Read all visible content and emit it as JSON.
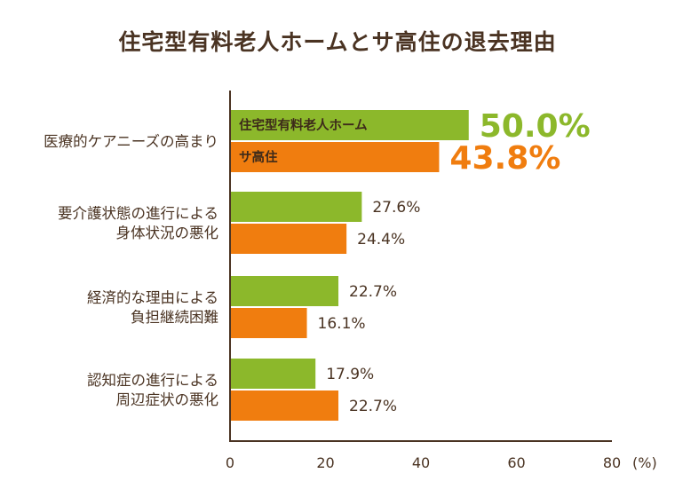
{
  "chart_data": {
    "type": "bar",
    "orientation": "horizontal",
    "title": "住宅型有料老人ホームとサ高住の退去理由",
    "categories": [
      [
        "医療的ケアニーズの高まり"
      ],
      [
        "要介護状態の進行による",
        "身体状況の悪化"
      ],
      [
        "経済的な理由による",
        "負担継続困難"
      ],
      [
        "認知症の進行による",
        "周辺症状の悪化"
      ]
    ],
    "series": [
      {
        "name": "住宅型有料老人ホーム",
        "color": "#8cb82b",
        "values": [
          50.0,
          27.6,
          22.7,
          17.9
        ]
      },
      {
        "name": "サ高住",
        "color": "#f07d0f",
        "values": [
          43.8,
          24.4,
          16.1,
          22.7
        ]
      }
    ],
    "value_labels": [
      [
        "50.0%",
        "27.6%",
        "22.7%",
        "17.9%"
      ],
      [
        "43.8%",
        "24.4%",
        "16.1%",
        "22.7%"
      ]
    ],
    "xlim": [
      0,
      80
    ],
    "xticks": [
      0,
      20,
      40,
      60,
      80
    ],
    "xunit": "(%)",
    "grid": false,
    "legend": "inside first category bars"
  }
}
